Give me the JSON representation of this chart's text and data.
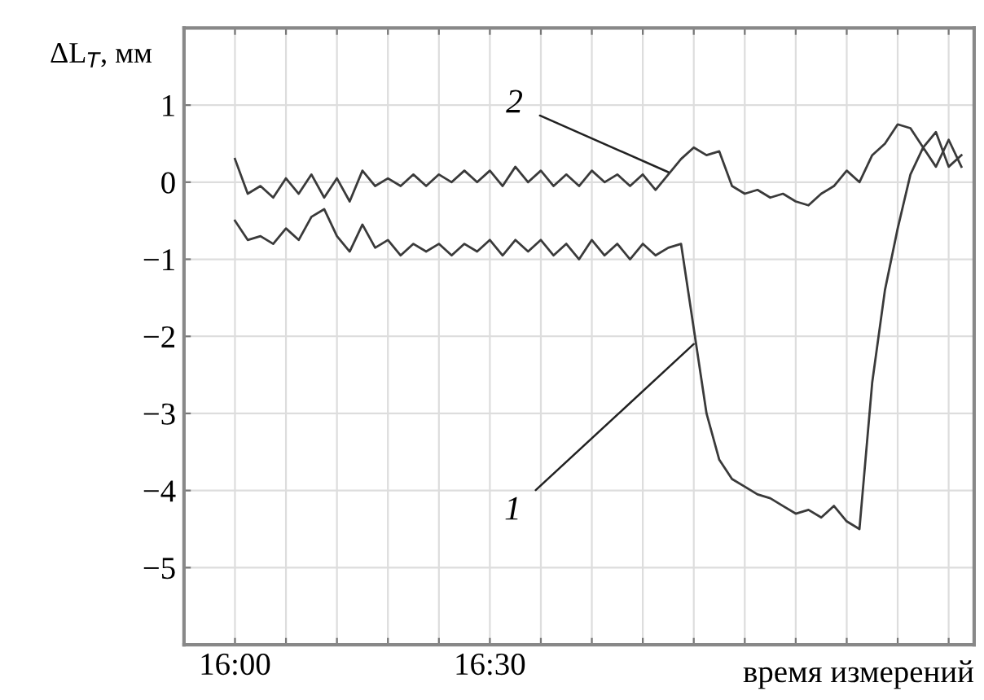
{
  "chart_data": {
    "type": "line",
    "ylabel": "ΔL$_{T}$, мм",
    "xlabel": "время измерений",
    "x": [
      16.0,
      16.025,
      16.05,
      16.075,
      16.1,
      16.125,
      16.15,
      16.175,
      16.2,
      16.225,
      16.25,
      16.275,
      16.3,
      16.325,
      16.35,
      16.375,
      16.4,
      16.425,
      16.45,
      16.475,
      16.5,
      16.525,
      16.55,
      16.575,
      16.6,
      16.625,
      16.65,
      16.675,
      16.7,
      16.725,
      16.75,
      16.775,
      16.8,
      16.825,
      16.85,
      16.875,
      16.9,
      16.925,
      16.95,
      16.975,
      17.0,
      17.025,
      17.05,
      17.075,
      17.1,
      17.125,
      17.15,
      17.175,
      17.2,
      17.225,
      17.25,
      17.275,
      17.3,
      17.325,
      17.35,
      17.375,
      17.4,
      17.425
    ],
    "series": [
      {
        "color": "#3a3a3a",
        "values": [
          -0.5,
          -0.75,
          -0.7,
          -0.8,
          -0.6,
          -0.75,
          -0.45,
          -0.35,
          -0.7,
          -0.9,
          -0.55,
          -0.85,
          -0.75,
          -0.95,
          -0.8,
          -0.9,
          -0.8,
          -0.95,
          -0.8,
          -0.9,
          -0.75,
          -0.95,
          -0.75,
          -0.9,
          -0.75,
          -0.95,
          -0.8,
          -1.0,
          -0.75,
          -0.95,
          -0.8,
          -1.0,
          -0.8,
          -0.95,
          -0.85,
          -0.8,
          -1.9,
          -3.0,
          -3.6,
          -3.85,
          -3.95,
          -4.05,
          -4.1,
          -4.2,
          -4.3,
          -4.25,
          -4.35,
          -4.2,
          -4.4,
          -4.5,
          -2.6,
          -1.4,
          -0.6,
          0.1,
          0.45,
          0.2,
          0.55,
          0.2
        ]
      },
      {
        "color": "#3a3a3a",
        "values": [
          0.3,
          -0.15,
          -0.05,
          -0.2,
          0.05,
          -0.15,
          0.1,
          -0.2,
          0.05,
          -0.25,
          0.15,
          -0.05,
          0.05,
          -0.05,
          0.1,
          -0.05,
          0.1,
          0.0,
          0.15,
          0.0,
          0.15,
          -0.05,
          0.2,
          0.0,
          0.15,
          -0.05,
          0.1,
          -0.05,
          0.15,
          0.0,
          0.1,
          -0.05,
          0.1,
          -0.1,
          0.1,
          0.3,
          0.45,
          0.35,
          0.4,
          -0.05,
          -0.15,
          -0.1,
          -0.2,
          -0.15,
          -0.25,
          -0.3,
          -0.15,
          -0.05,
          0.15,
          0.0,
          0.35,
          0.5,
          0.75,
          0.7,
          0.45,
          0.65,
          0.2,
          0.35
        ]
      }
    ],
    "annotations": [
      {
        "text": "1",
        "x": 16.9,
        "y": -2.1
      },
      {
        "text": "2",
        "x": 16.85,
        "y": 0.13
      }
    ],
    "xlim": [
      15.9,
      17.45
    ],
    "xticks": [
      {
        "value": 16.0,
        "label": "16:00"
      },
      {
        "value": 16.1,
        "label": null
      },
      {
        "value": 16.2,
        "label": null
      },
      {
        "value": 16.3,
        "label": null
      },
      {
        "value": 16.4,
        "label": null
      },
      {
        "value": 16.5,
        "label": "16:30"
      },
      {
        "value": 16.6,
        "label": null
      },
      {
        "value": 16.7,
        "label": null
      },
      {
        "value": 16.8,
        "label": null
      },
      {
        "value": 16.9,
        "label": null
      },
      {
        "value": 17.0,
        "label": null
      },
      {
        "value": 17.1,
        "label": null
      },
      {
        "value": 17.2,
        "label": null
      },
      {
        "value": 17.3,
        "label": null
      },
      {
        "value": 17.4,
        "label": null
      }
    ],
    "ylim": [
      -6,
      2
    ],
    "yticks": [
      -5,
      -4,
      -3,
      -2,
      -1,
      0,
      1
    ],
    "grid": true,
    "legend": false,
    "marker": "none",
    "line_style": "solid"
  }
}
